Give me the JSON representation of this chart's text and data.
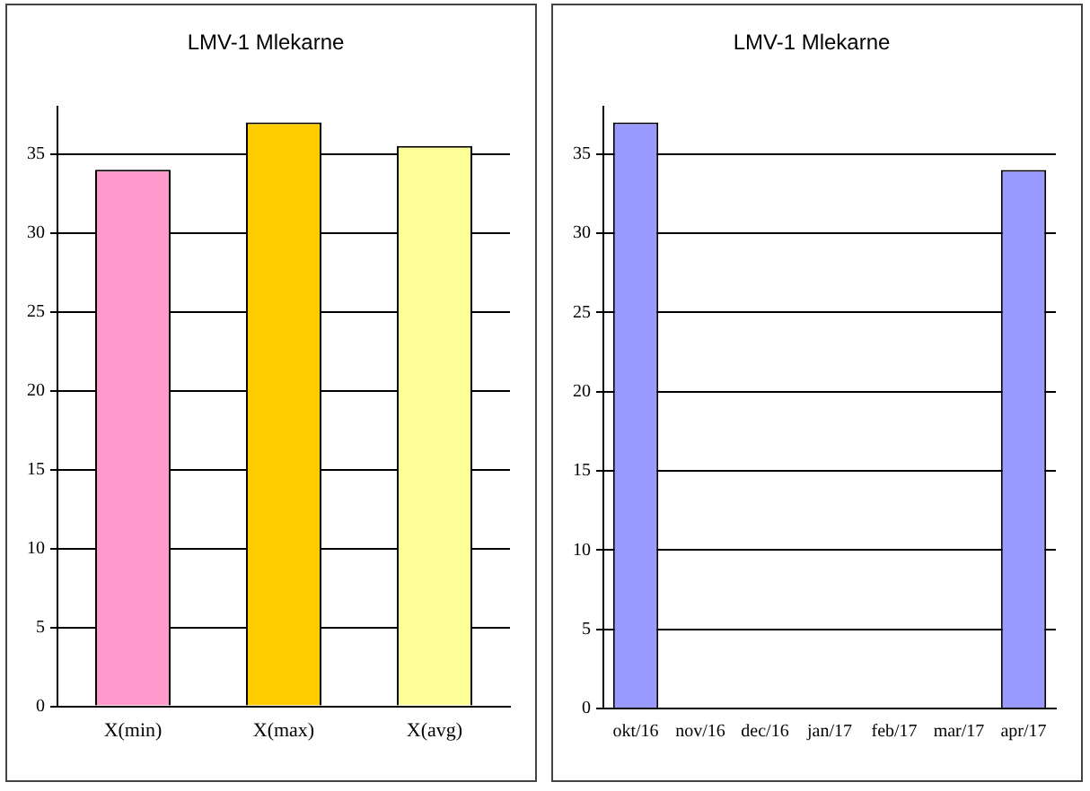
{
  "chart_data": [
    {
      "type": "bar",
      "title": "LMV-1 Mlekarne",
      "categories": [
        "X(min)",
        "X(max)",
        "X(avg)"
      ],
      "values": [
        34,
        37,
        35.5
      ],
      "colors": [
        "#ff99cc",
        "#ffcc00",
        "#ffff99"
      ],
      "ylim": [
        0,
        38
      ],
      "yticks": [
        0,
        5,
        10,
        15,
        20,
        25,
        30,
        35
      ],
      "grid": "y",
      "legend": false
    },
    {
      "type": "bar",
      "title": "LMV-1 Mlekarne",
      "categories": [
        "okt/16",
        "nov/16",
        "dec/16",
        "jan/17",
        "feb/17",
        "mar/17",
        "apr/17"
      ],
      "values": [
        37,
        null,
        null,
        null,
        null,
        null,
        34
      ],
      "color": "#9999ff",
      "ylim": [
        0,
        38
      ],
      "yticks": [
        0,
        5,
        10,
        15,
        20,
        25,
        30,
        35
      ],
      "grid": "y",
      "legend": false
    }
  ]
}
